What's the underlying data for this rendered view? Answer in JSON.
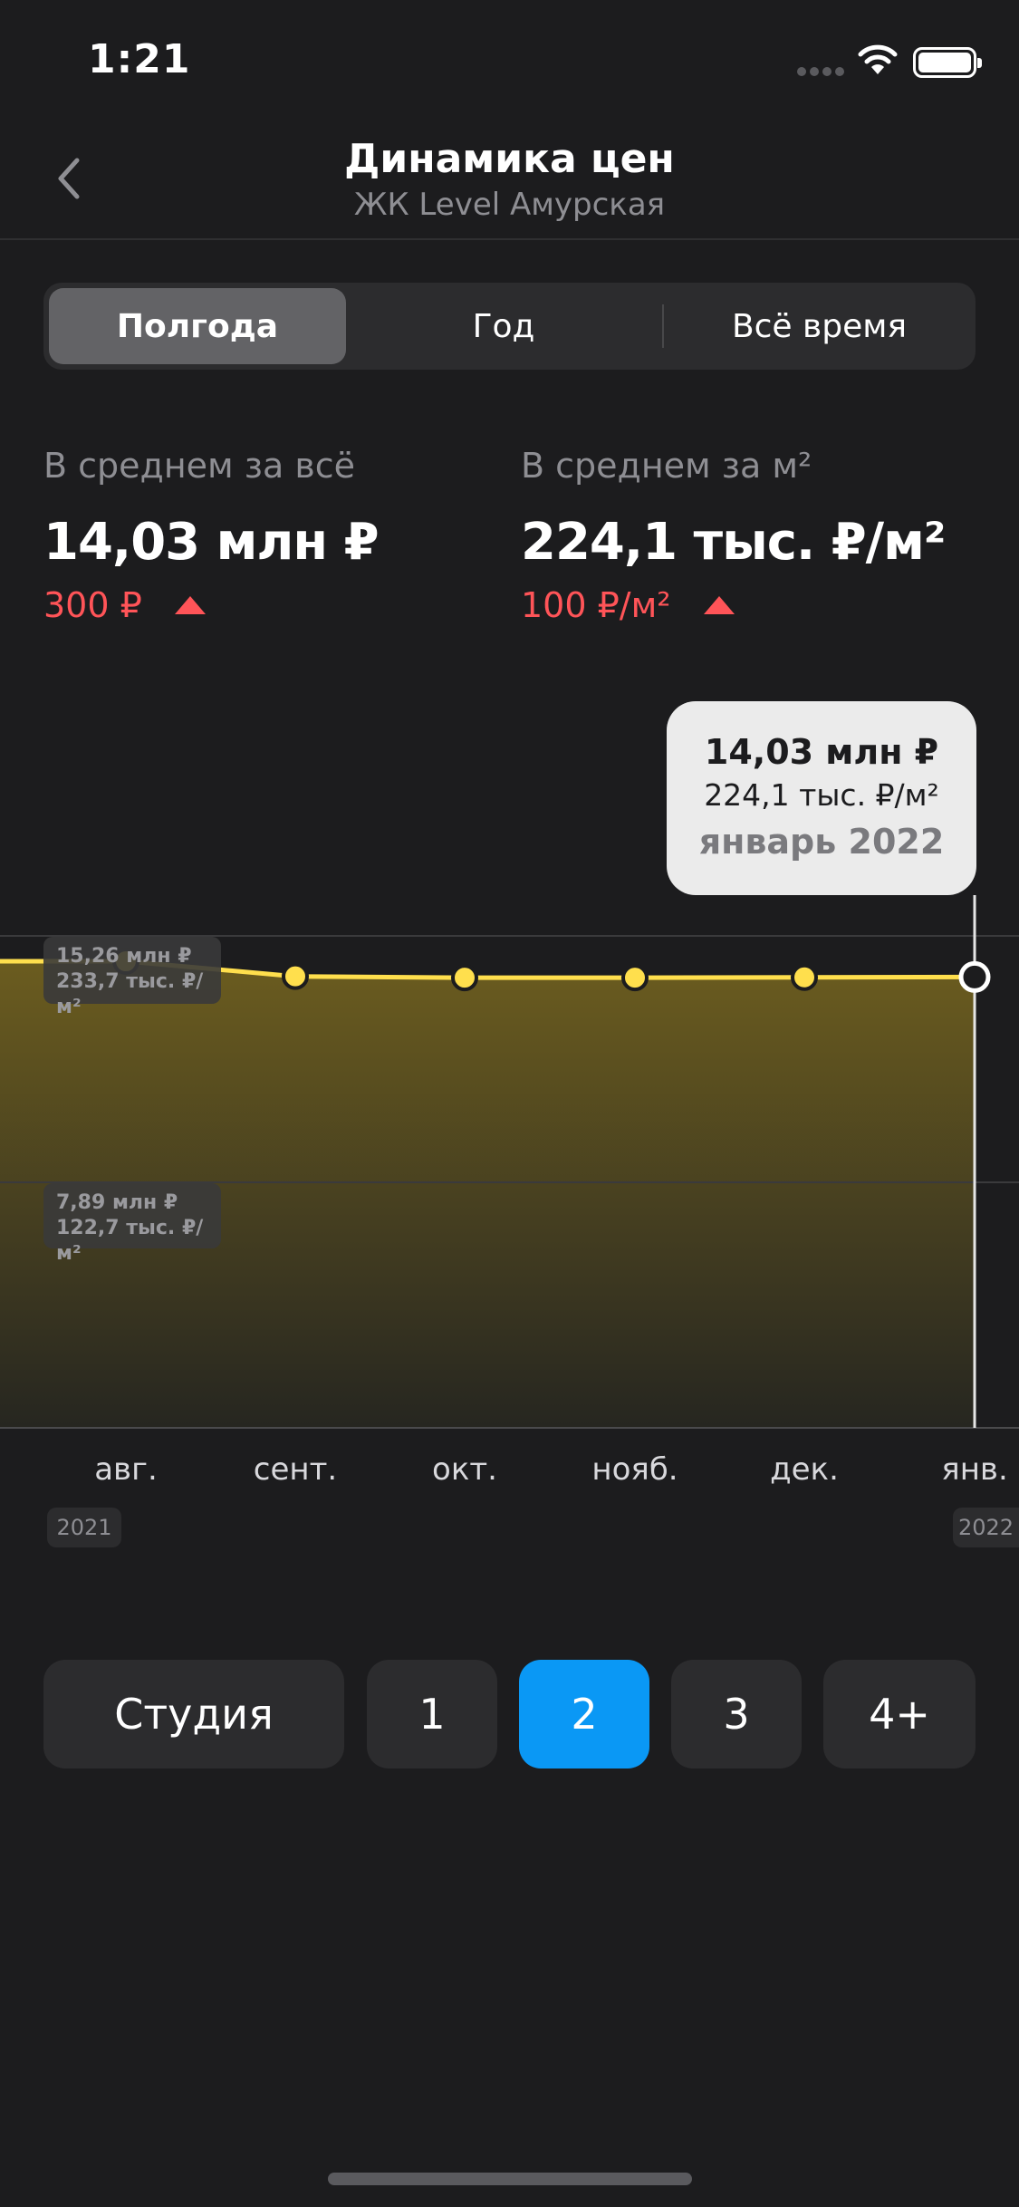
{
  "status_bar": {
    "time": "1:21"
  },
  "nav": {
    "title": "Динамика цен",
    "subtitle": "ЖК Level Амурская",
    "back_icon": "chevron-left-icon"
  },
  "period_tabs": {
    "items": [
      "Полгода",
      "Год",
      "Всё время"
    ],
    "selected": "Полгода"
  },
  "stats": {
    "total": {
      "label": "В среднем за всё",
      "value": "14,03 млн ₽",
      "delta": "300 ₽",
      "trend": "up"
    },
    "per_meter": {
      "label": "В среднем за м²",
      "value": "224,1 тыс. ₽/м²",
      "delta": "100 ₽/м²",
      "trend": "up"
    }
  },
  "tooltip": {
    "price": "14,03 млн ₽",
    "per_meter": "224,1 тыс. ₽/м²",
    "date": "январь 2022"
  },
  "scale_labels": {
    "upper": {
      "line1": "15,26 млн ₽",
      "line2": "233,7 тыс. ₽/м²"
    },
    "lower": {
      "line1": "7,89 млн ₽",
      "line2": "122,7 тыс. ₽/м²"
    }
  },
  "year_badges": {
    "start": "2021",
    "end": "2022"
  },
  "room_filters": {
    "items": [
      "Студия",
      "1",
      "2",
      "3",
      "4+"
    ],
    "selected": "2"
  },
  "colors": {
    "accent_line": "#ffdf4d",
    "delta_up": "#ff5458",
    "selected_filter": "#0a98f5"
  },
  "chart_data": {
    "type": "area",
    "categories": [
      "авг.",
      "сент.",
      "окт.",
      "нояб.",
      "дек.",
      "янв."
    ],
    "series": [
      {
        "values": [
          14.5,
          14.05,
          14.01,
          14.01,
          14.02,
          14.03
        ]
      }
    ],
    "gridlines": [
      15.26,
      7.89
    ],
    "ylim": [
      0,
      15.5
    ],
    "highlighted_point": "янв.",
    "grid": true
  }
}
